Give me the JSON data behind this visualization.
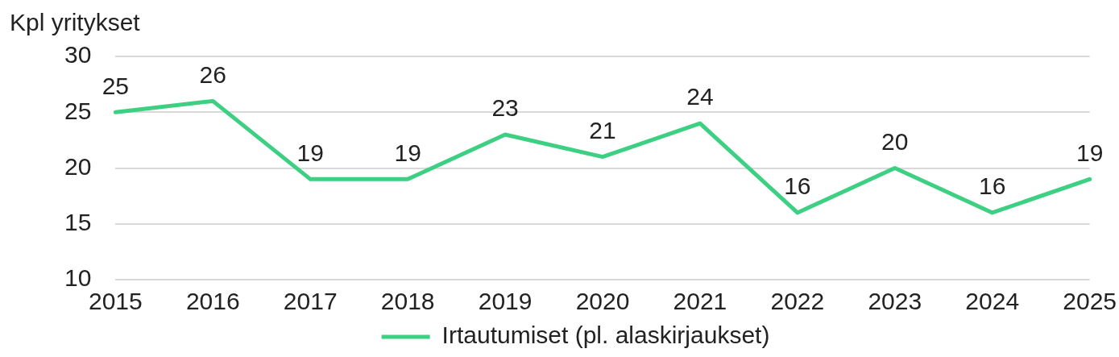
{
  "chart_data": {
    "type": "line",
    "ylabel": "Kpl yritykset",
    "categories": [
      "2015",
      "2016",
      "2017",
      "2018",
      "2019",
      "2020",
      "2021",
      "2022",
      "2023",
      "2024",
      "2025"
    ],
    "series": [
      {
        "name": "Irtautumiset (pl. alaskirjaukset)",
        "color": "#3dd083",
        "values": [
          25,
          26,
          19,
          19,
          23,
          21,
          24,
          16,
          20,
          16,
          19
        ]
      }
    ],
    "ylim": [
      10,
      30
    ],
    "yticks": [
      10,
      15,
      20,
      25,
      30
    ],
    "grid": "y",
    "legend": "bottom",
    "marker": "none",
    "line_style": "solid",
    "data_labels": true
  }
}
